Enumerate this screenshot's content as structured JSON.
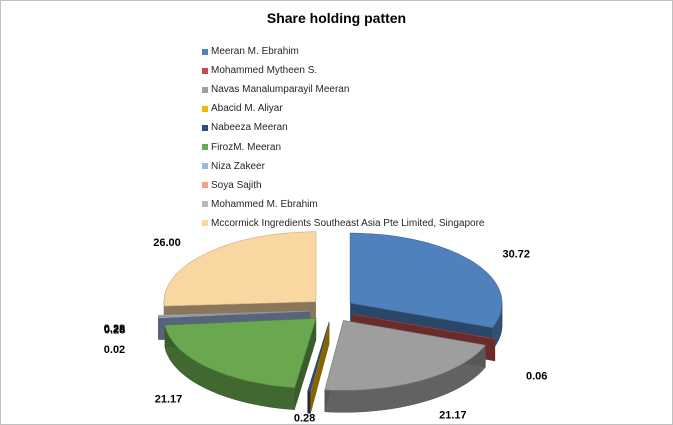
{
  "chart_data": {
    "type": "pie",
    "variant": "exploded-3d",
    "title": "Share holding patten",
    "legend_position": "top",
    "categories": [
      "Meeran M. Ebrahim",
      "Mohammed Mytheen S.",
      "Navas Manalumparayil Meeran",
      "Abacid M. Aliyar",
      "Nabeeza Meeran",
      "FirozM. Meeran",
      "Niza Zakeer",
      "Soya Sajith",
      "Mohammed M. Ebrahim",
      "Mccormick Ingredients Southeast Asia Pte Limited, Singapore"
    ],
    "values": [
      30.72,
      0.06,
      21.17,
      0.02,
      0.28,
      21.17,
      0.28,
      0.02,
      0.28,
      26.0
    ],
    "value_labels": [
      "30.72",
      "0.06",
      "21.17",
      "0.02",
      "0.28",
      "21.17",
      "0.28",
      "0.02",
      "0.28",
      "26.00"
    ],
    "colors": [
      "#4F81BD",
      "#C0504D",
      "#9E9E9E",
      "#F2B705",
      "#2E4D8A",
      "#6AA84F",
      "#9DB8E0",
      "#F4A08A",
      "#B8B8B8",
      "#FAD7A0"
    ]
  }
}
